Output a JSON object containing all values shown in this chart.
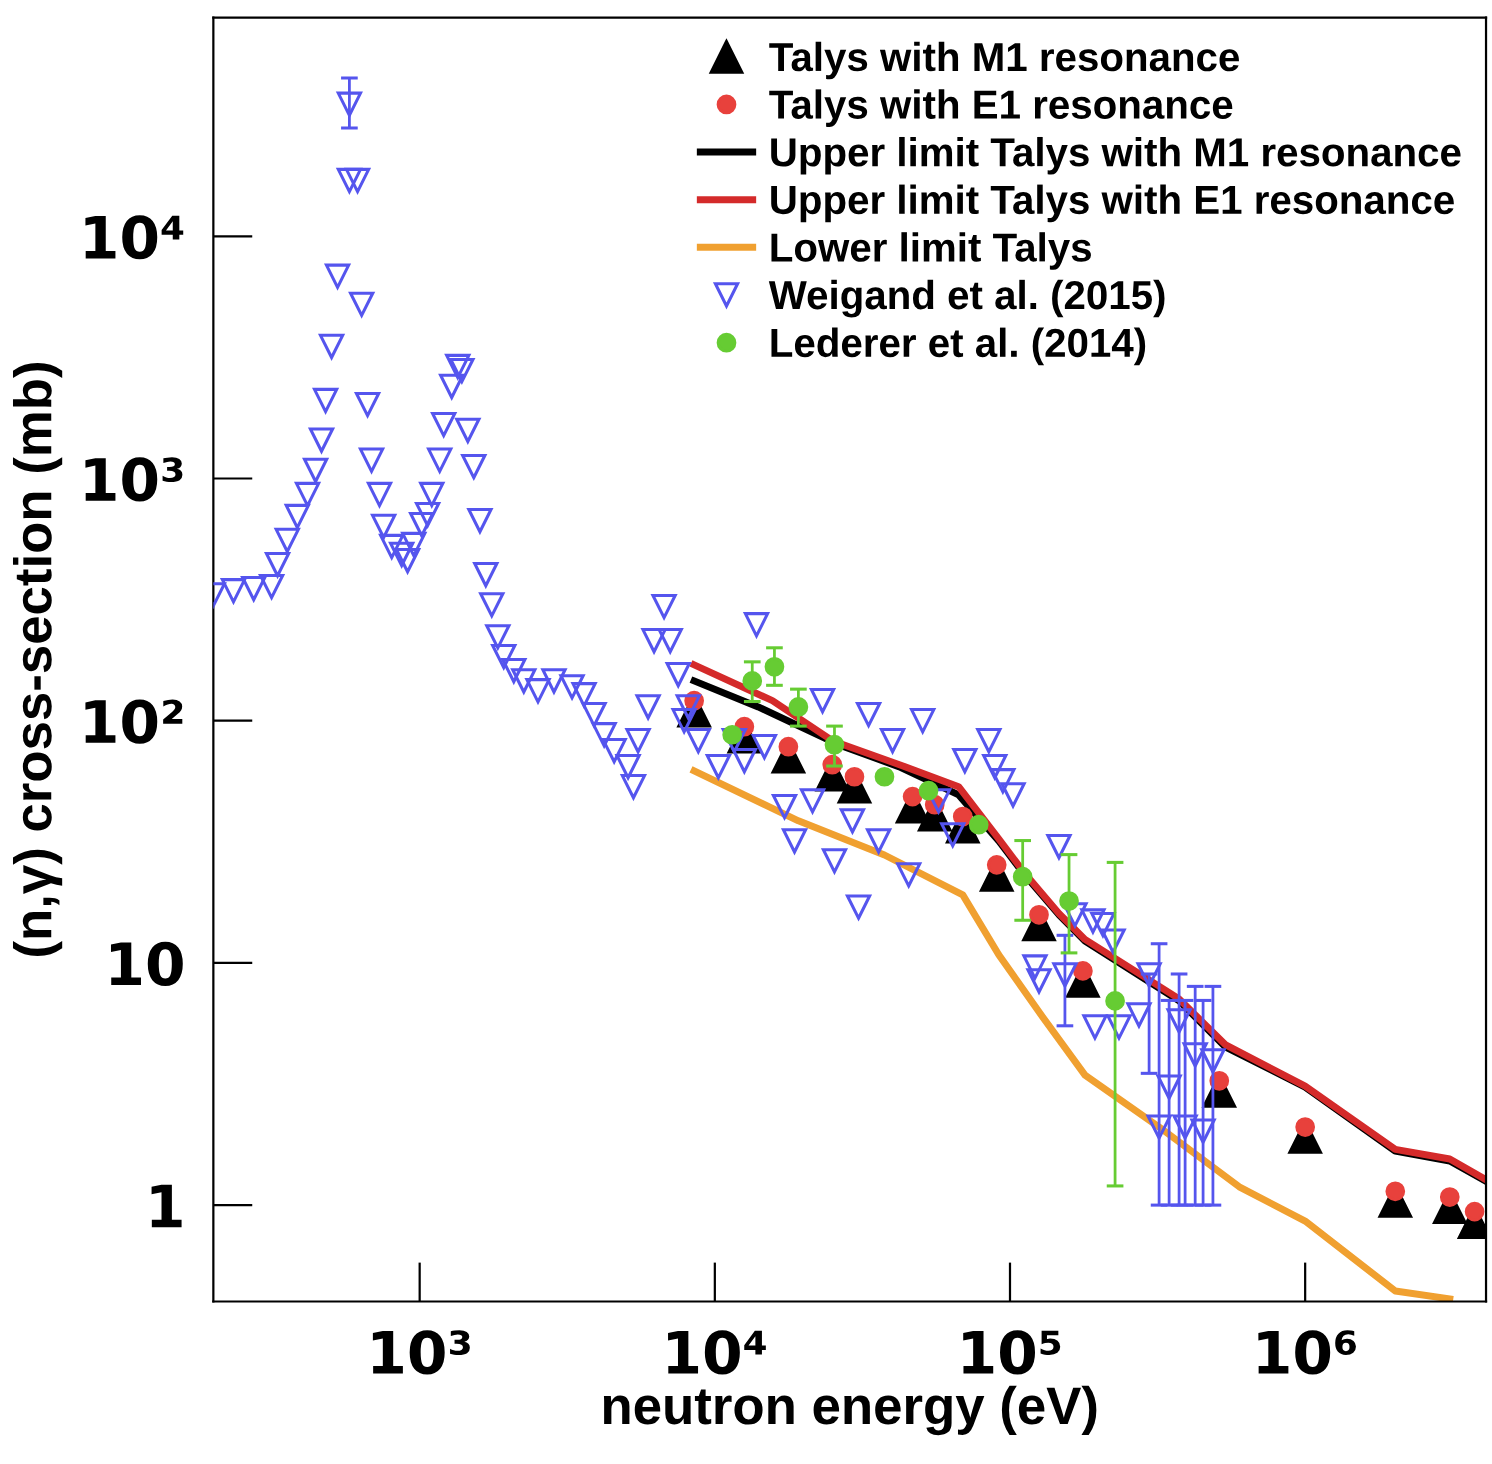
{
  "chart_data": {
    "type": "scatter",
    "xlabel": "neutron energy (eV)",
    "ylabel": "(n,γ) cross-section (mb)",
    "log": "xy",
    "grid": false,
    "legend": "top right",
    "xlim": [
      200,
      4100000
    ],
    "ylim": [
      0.4,
      80000
    ],
    "xticks": [
      {
        "value": 1000,
        "label": "10³"
      },
      {
        "value": 10000,
        "label": "10⁴"
      },
      {
        "value": 100000,
        "label": "10⁵"
      },
      {
        "value": 1000000,
        "label": "10⁶"
      }
    ],
    "yticks": [
      1,
      10,
      {
        "value": 100,
        "label": "10²"
      },
      {
        "value": 1000,
        "label": "10³"
      },
      {
        "value": 10000,
        "label": "10⁴"
      }
    ],
    "series": [
      {
        "name": "Talys with M1 resonance",
        "marker": "triangle",
        "color": "#000000",
        "x": [
          8510,
          12590,
          17750,
          25000,
          29720,
          46770,
          55590,
          69180,
          90160,
          125400,
          176600,
          511700,
          1000000,
          2020000,
          3090000,
          3750000
        ],
        "values": [
          110,
          85.9,
          71.0,
          59.8,
          53.4,
          44.2,
          40.9,
          36.5,
          23.1,
          14.4,
          8.43,
          2.96,
          1.91,
          1.04,
          0.98,
          0.85
        ]
      },
      {
        "name": "Talys with E1 resonance",
        "marker": "circle",
        "color": "#e8413c",
        "x": [
          8510,
          12590,
          17750,
          25000,
          29720,
          46770,
          55590,
          69180,
          90160,
          125400,
          176600,
          511700,
          1000000,
          2020000,
          3090000,
          3750000
        ],
        "values": [
          121,
          94.5,
          78.1,
          65.8,
          58.7,
          48.6,
          45.0,
          40.2,
          25.4,
          15.8,
          9.27,
          3.26,
          2.1,
          1.14,
          1.08,
          0.94
        ]
      },
      {
        "name": "Upper limit Talys with M1 resonance",
        "type": "line",
        "marker": "none",
        "color": "#000000",
        "x": [
          8510,
          14030,
          26240,
          42000,
          67000,
          91600,
          112000,
          146500,
          179500,
          374000,
          536000,
          1000000,
          2020000,
          3090000,
          4070000
        ],
        "values": [
          146,
          114,
          79.6,
          64.6,
          49.4,
          31.9,
          23.1,
          15.8,
          12.3,
          6.97,
          4.5,
          3.07,
          1.67,
          1.52,
          1.26
        ]
      },
      {
        "name": "Upper limit Talys with E1 resonance",
        "type": "line",
        "marker": "none",
        "color": "#d42a2a",
        "x": [
          8510,
          15670,
          25000,
          42000,
          67000,
          91600,
          112000,
          146500,
          179500,
          374000,
          536000,
          1000000,
          2020000,
          3090000,
          4070000
        ],
        "values": [
          170,
          121,
          82.7,
          66,
          53.4,
          32.5,
          23.5,
          16,
          12.5,
          7.1,
          4.6,
          3.1,
          1.7,
          1.55,
          1.28
        ]
      },
      {
        "name": "Lower limit Talys",
        "type": "line",
        "marker": "none",
        "color": "#f0a030",
        "x": [
          8510,
          19190,
          37560,
          69180,
          91600,
          129000,
          179500,
          320000,
          598000,
          1000000,
          2020000,
          3090000
        ],
        "values": [
          62.1,
          38.6,
          27.9,
          19.1,
          10.8,
          5.98,
          3.44,
          2.1,
          1.19,
          0.859,
          0.442,
          0.41
        ]
      },
      {
        "name": "Weigand et al. (2015)",
        "marker": "triangle_down",
        "color": "#5555ee",
        "x": [
          200,
          234,
          274,
          315,
          330,
          356,
          385,
          417,
          444,
          465,
          480,
          503,
          527,
          578,
          578,
          616,
          636,
          666,
          687,
          731,
          755,
          804,
          869,
          910,
          955,
          1016,
          1064,
          1099,
          1169,
          1206,
          1284,
          1346,
          1390,
          1456,
          1525,
          1600,
          1675,
          1755,
          1840,
          1927,
          2084,
          2253,
          2517,
          2851,
          3283,
          3606,
          3899,
          4217,
          4559,
          5083,
          5300,
          5495,
          5942,
          6224,
          6730,
          7060,
          7516,
          8128,
          7870,
          8790,
          10280,
          13840,
          11640,
          12590,
          14720,
          17220,
          18620,
          21430,
          23170,
          25430,
          29250,
          30680,
          33180,
          35880,
          40010,
          45360,
          50600,
          57280,
          63970,
          70310,
          84780,
          88790,
          94590,
          102400,
          121500,
          146500,
          191000,
          223500,
          125400,
          153500,
          166000,
          194000,
          206500,
          234000,
          273500,
          296000,
          320000,
          346000,
          374000,
          392000,
          424000,
          451000,
          487000
        ],
        "values": [
          331,
          344,
          351,
          358,
          441,
          555,
          697,
          859,
          1080,
          1440,
          2100,
          3510,
          6840,
          17000,
          35100,
          17000,
          5240,
          2020,
          1190,
          859,
          634,
          524,
          486,
          458,
          534,
          645,
          710,
          859,
          1190,
          1670,
          2400,
          2900,
          2790,
          1580,
          1120,
          670,
          401,
          301,
          222,
          184,
          161,
          146,
          133,
          146,
          138,
          128,
          106,
          87.5,
          75.2,
          64.6,
          53.4,
          82.7,
          114,
          214,
          296,
          214,
          155,
          114,
          100,
          82.7,
          64.6,
          249,
          82.7,
          68.4,
          78.1,
          44.2,
          31.9,
          46.7,
          121,
          26.4,
          38.6,
          17.0,
          106,
          31.9,
          82.7,
          23.1,
          100,
          46.7,
          33.8,
          68.4,
          82.7,
          64.6,
          56.5,
          49.4,
          9.62,
          30.2,
          14.9,
          12.3,
          8.43,
          8.92,
          15.8,
          5.44,
          14.4,
          5.44,
          6.1,
          8.92,
          2.1,
          3.07,
          5.76,
          2.1,
          4.17,
          2.02,
          3.94
        ],
        "errors": [
          null,
          null,
          null,
          null,
          null,
          null,
          null,
          null,
          null,
          null,
          null,
          null,
          null,
          null,
          [
            28000,
            45000
          ],
          null,
          null,
          null,
          null,
          null,
          null,
          null,
          null,
          null,
          null,
          null,
          null,
          null,
          null,
          null,
          null,
          null,
          null,
          null,
          null,
          null,
          null,
          null,
          null,
          null,
          null,
          null,
          null,
          null,
          null,
          null,
          null,
          null,
          null,
          null,
          null,
          null,
          null,
          null,
          null,
          null,
          null,
          null,
          null,
          null,
          null,
          null,
          null,
          null,
          null,
          null,
          null,
          null,
          null,
          null,
          null,
          null,
          null,
          null,
          null,
          null,
          null,
          null,
          null,
          null,
          null,
          null,
          null,
          null,
          null,
          null,
          null,
          null,
          null,
          [
            5.5,
            13
          ],
          null,
          null,
          null,
          null,
          null,
          [
            3.5,
            9
          ],
          [
            1.0,
            12
          ],
          [
            1.0,
            7
          ],
          [
            1.0,
            9
          ],
          [
            1.0,
            7
          ],
          [
            1.0,
            8
          ],
          [
            1.0,
            7
          ],
          [
            1.0,
            8
          ]
        ]
      },
      {
        "name": "Lederer et al. (2014)",
        "marker": "circle",
        "color": "#66cc33",
        "x": [
          11450,
          13390,
          15920,
          19190,
          25430,
          37560,
          52970,
          78340,
          110400,
          158500,
          227000
        ],
        "values": [
          87.5,
          146,
          167,
          114,
          79.6,
          58.7,
          51.4,
          37.2,
          22.7,
          18.0,
          6.97
        ],
        "errors": [
          null,
          [
            120,
            175
          ],
          [
            140,
            200
          ],
          [
            95,
            135
          ],
          [
            65,
            95
          ],
          null,
          null,
          null,
          [
            15,
            32
          ],
          [
            11,
            28
          ],
          [
            1.2,
            26
          ]
        ]
      }
    ]
  }
}
